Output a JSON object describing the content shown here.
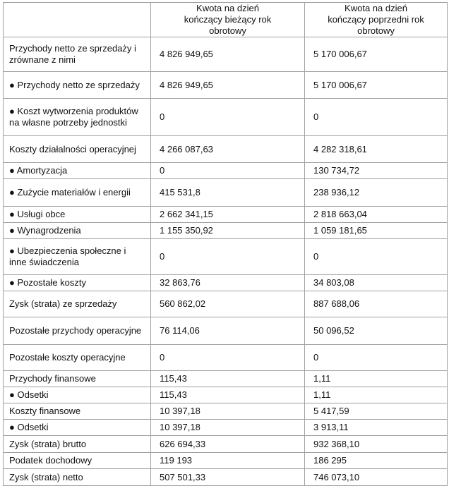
{
  "headers": [
    "",
    "Kwota na dzień kończący bieżący rok obrotowy",
    "Kwota na dzień kończący poprzedni rok obrotowy"
  ],
  "rows": [
    {
      "label": "Przychody netto ze sprzedaży i zrównane z nimi",
      "current": "4 826 949,65",
      "previous": "5 170 006,67"
    },
    {
      "label": "● Przychody netto ze sprzedaży",
      "current": "4 826 949,65",
      "previous": "5 170 006,67"
    },
    {
      "label": "● Koszt wytworzenia produktów na własne potrzeby jednostki",
      "current": "0",
      "previous": "0"
    },
    {
      "label": "Koszty działalności operacyjnej",
      "current": "4 266 087,63",
      "previous": "4 282 318,61"
    },
    {
      "label": "● Amortyzacja",
      "current": "0",
      "previous": "130 734,72"
    },
    {
      "label": "● Zużycie materiałów i energii",
      "current": "415 531,8",
      "previous": "238 936,12"
    },
    {
      "label": "● Usługi obce",
      "current": "2 662 341,15",
      "previous": "2 818 663,04"
    },
    {
      "label": "● Wynagrodzenia",
      "current": "1 155 350,92",
      "previous": "1 059 181,65"
    },
    {
      "label": "● Ubezpieczenia społeczne i inne świadczenia",
      "current": "0",
      "previous": "0"
    },
    {
      "label": "● Pozostałe koszty",
      "current": "32 863,76",
      "previous": "34 803,08"
    },
    {
      "label": "Zysk (strata) ze sprzedaży",
      "current": "560 862,02",
      "previous": "887 688,06"
    },
    {
      "label": "Pozostałe przychody operacyjne",
      "current": "76 114,06",
      "previous": "50 096,52"
    },
    {
      "label": "Pozostałe koszty operacyjne",
      "current": "0",
      "previous": "0"
    },
    {
      "label": "Przychody finansowe",
      "current": "115,43",
      "previous": "1,11"
    },
    {
      "label": "● Odsetki",
      "current": "115,43",
      "previous": "1,11"
    },
    {
      "label": "Koszty finansowe",
      "current": "10 397,18",
      "previous": "5 417,59"
    },
    {
      "label": "● Odsetki",
      "current": "10 397,18",
      "previous": "3 913,11"
    },
    {
      "label": "Zysk (strata) brutto",
      "current": "626 694,33",
      "previous": "932 368,10"
    },
    {
      "label": "Podatek dochodowy",
      "current": "119 193",
      "previous": "186 295"
    },
    {
      "label": "Zysk (strata) netto",
      "current": "507 501,33",
      "previous": "746 073,10"
    }
  ]
}
